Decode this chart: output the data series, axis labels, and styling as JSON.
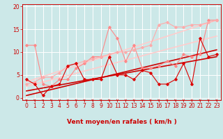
{
  "background_color": "#cce8e8",
  "grid_color": "#ffffff",
  "xlabel": "Vent moyen/en rafales ( km/h )",
  "xlim_min": -0.5,
  "xlim_max": 23.5,
  "ylim_min": -0.5,
  "ylim_max": 20.5,
  "xticks": [
    0,
    1,
    2,
    3,
    4,
    5,
    6,
    7,
    8,
    9,
    10,
    11,
    12,
    13,
    14,
    15,
    16,
    17,
    18,
    19,
    20,
    21,
    22,
    23
  ],
  "yticks": [
    0,
    5,
    10,
    15,
    20
  ],
  "lines": [
    {
      "x": [
        0,
        1,
        2,
        3,
        4,
        5,
        6,
        7,
        8,
        9,
        10,
        11,
        12,
        13,
        14,
        15,
        16,
        17,
        18,
        19,
        20,
        21,
        22,
        23
      ],
      "y": [
        4.0,
        3.0,
        0.5,
        2.5,
        3.0,
        7.0,
        7.5,
        4.0,
        4.0,
        4.0,
        9.0,
        5.0,
        5.0,
        4.0,
        6.0,
        5.5,
        3.0,
        3.0,
        4.0,
        7.5,
        3.0,
        13.0,
        9.0,
        9.5
      ],
      "color": "#dd0000",
      "linewidth": 0.8,
      "marker": "D",
      "markersize": 1.8,
      "alpha": 1.0,
      "zorder": 5
    },
    {
      "x": [
        0,
        1,
        2,
        3,
        4,
        5,
        6,
        7,
        8,
        9,
        10,
        11,
        12,
        13,
        14,
        15,
        16,
        17,
        18,
        19,
        20,
        21,
        22,
        23
      ],
      "y": [
        11.5,
        11.5,
        3.0,
        2.5,
        4.0,
        4.0,
        6.5,
        7.5,
        9.0,
        9.0,
        15.5,
        13.0,
        8.0,
        11.5,
        6.5,
        6.5,
        7.0,
        8.0,
        7.0,
        9.5,
        9.0,
        9.5,
        17.0,
        17.0
      ],
      "color": "#ff8888",
      "linewidth": 0.8,
      "marker": "D",
      "markersize": 1.8,
      "alpha": 1.0,
      "zorder": 4
    },
    {
      "x": [
        0,
        1,
        2,
        3,
        4,
        5,
        6,
        7,
        8,
        9,
        10,
        11,
        12,
        13,
        14,
        15,
        16,
        17,
        18,
        19,
        20,
        21,
        22,
        23
      ],
      "y": [
        3.0,
        3.5,
        4.5,
        4.5,
        5.5,
        7.0,
        7.5,
        8.0,
        8.5,
        9.0,
        9.5,
        10.0,
        10.0,
        10.5,
        11.0,
        11.5,
        16.0,
        16.5,
        15.5,
        15.5,
        16.0,
        16.0,
        16.5,
        17.0
      ],
      "color": "#ffaaaa",
      "linewidth": 0.8,
      "marker": "D",
      "markersize": 1.8,
      "alpha": 1.0,
      "zorder": 4
    },
    {
      "x": [
        0,
        23
      ],
      "y": [
        0.5,
        10.5
      ],
      "color": "#cc0000",
      "linewidth": 1.2,
      "marker": null,
      "markersize": 0,
      "alpha": 1.0,
      "zorder": 3
    },
    {
      "x": [
        0,
        23
      ],
      "y": [
        1.5,
        9.0
      ],
      "color": "#cc0000",
      "linewidth": 1.2,
      "marker": null,
      "markersize": 0,
      "alpha": 1.0,
      "zorder": 3
    },
    {
      "x": [
        0,
        23
      ],
      "y": [
        3.5,
        17.0
      ],
      "color": "#ffcccc",
      "linewidth": 1.2,
      "marker": null,
      "markersize": 0,
      "alpha": 1.0,
      "zorder": 2
    },
    {
      "x": [
        0,
        23
      ],
      "y": [
        2.5,
        13.5
      ],
      "color": "#ffcccc",
      "linewidth": 1.2,
      "marker": null,
      "markersize": 0,
      "alpha": 1.0,
      "zorder": 2
    }
  ],
  "tick_fontsize": 5.5,
  "label_fontsize": 6.5,
  "label_fontweight": "bold"
}
